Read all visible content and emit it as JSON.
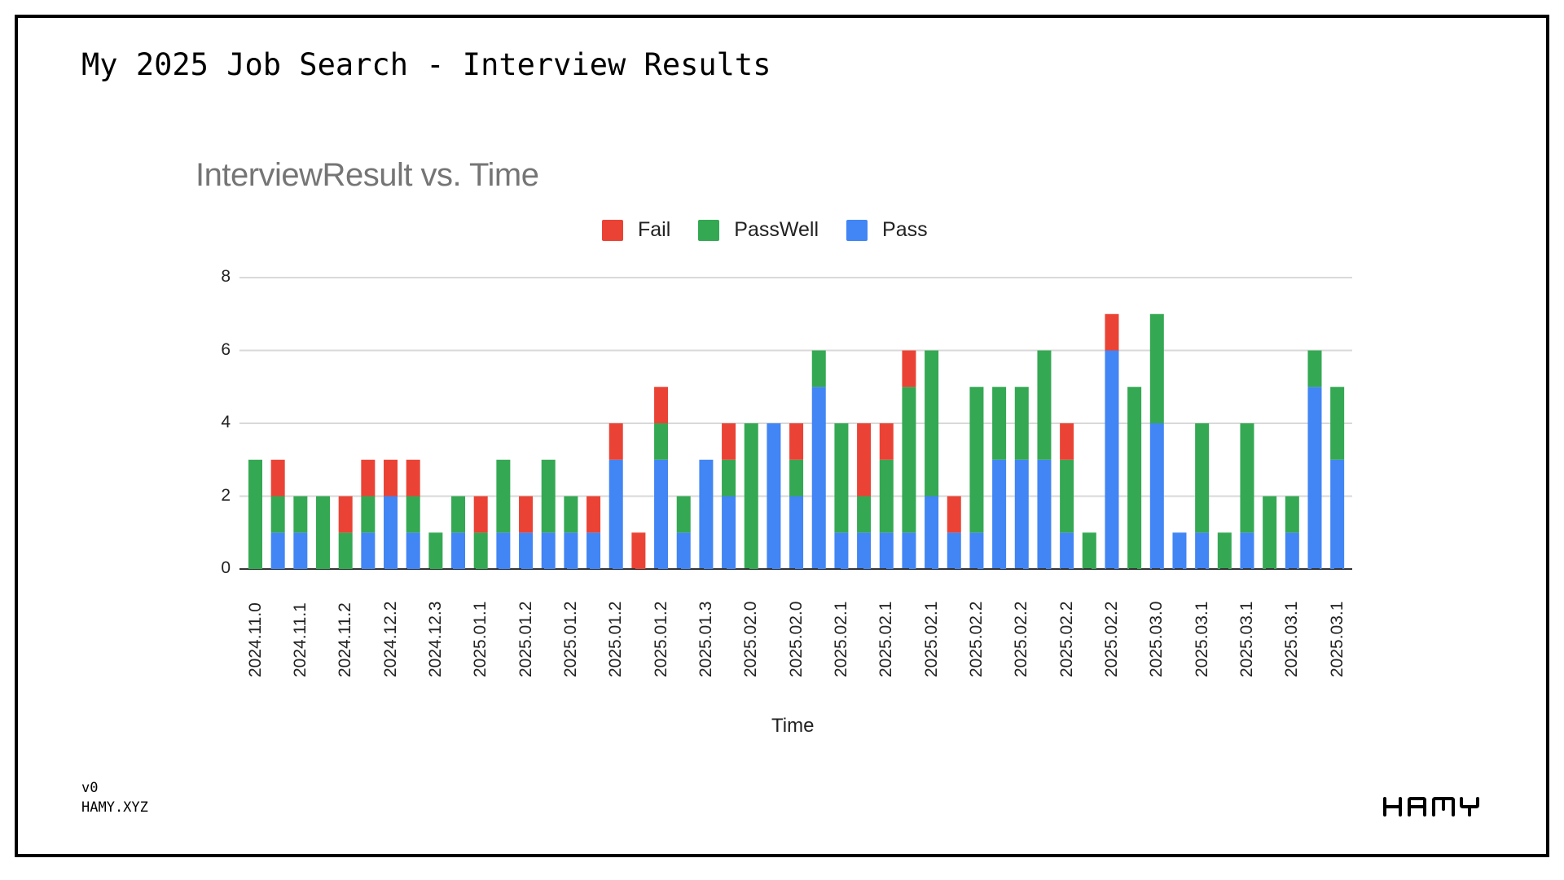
{
  "slide": {
    "title": "My 2025 Job Search - Interview Results",
    "footer_version": "v0",
    "footer_site": "HAMY.XYZ",
    "logo_text": "HAMY"
  },
  "colors": {
    "fail": "#EA4335",
    "passwell": "#34A853",
    "pass": "#4285F4",
    "gridline": "#d9d9d9",
    "title_gray": "#757575"
  },
  "chart_data": {
    "type": "bar",
    "stacked": true,
    "title": "InterviewResult vs. Time",
    "xlabel": "Time",
    "ylabel": "",
    "ylim": [
      0,
      8
    ],
    "yticks": [
      0,
      2,
      4,
      6,
      8
    ],
    "grid": true,
    "legend_position": "top",
    "legend": [
      "Fail",
      "PassWell",
      "Pass"
    ],
    "x_tick_labels": [
      "2024.11.0",
      "2024.11.1",
      "2024.11.2",
      "2024.12.2",
      "2024.12.3",
      "2025.01.1",
      "2025.01.2",
      "2025.01.2",
      "2025.01.2",
      "2025.01.2",
      "2025.01.3",
      "2025.02.0",
      "2025.02.0",
      "2025.02.1",
      "2025.02.1",
      "2025.02.1",
      "2025.02.2",
      "2025.02.2",
      "2025.02.2",
      "2025.02.2",
      "2025.03.0",
      "2025.03.1",
      "2025.03.1",
      "2025.03.1",
      "2025.03.1"
    ],
    "x_tick_every": 2,
    "bar_count": 49,
    "series": [
      {
        "name": "Pass",
        "color": "#4285F4",
        "values": [
          0,
          1,
          1,
          0,
          0,
          1,
          2,
          1,
          0,
          1,
          0,
          1,
          1,
          1,
          1,
          1,
          3,
          0,
          3,
          1,
          3,
          2,
          0,
          4,
          2,
          5,
          1,
          1,
          1,
          1,
          2,
          1,
          1,
          3,
          3,
          3,
          1,
          0,
          6,
          0,
          4,
          1,
          1,
          0,
          1,
          0,
          1,
          5,
          3
        ]
      },
      {
        "name": "PassWell",
        "color": "#34A853",
        "values": [
          3,
          1,
          1,
          2,
          1,
          1,
          0,
          1,
          1,
          1,
          1,
          2,
          0,
          2,
          1,
          0,
          0,
          0,
          1,
          1,
          0,
          1,
          4,
          0,
          1,
          1,
          3,
          1,
          2,
          4,
          4,
          0,
          4,
          2,
          2,
          3,
          2,
          1,
          0,
          5,
          3,
          0,
          3,
          1,
          3,
          2,
          1,
          1,
          2
        ]
      },
      {
        "name": "Fail",
        "color": "#EA4335",
        "values": [
          0,
          1,
          0,
          0,
          1,
          1,
          1,
          1,
          0,
          0,
          1,
          0,
          1,
          0,
          0,
          1,
          1,
          1,
          1,
          0,
          0,
          1,
          0,
          0,
          1,
          0,
          0,
          2,
          1,
          1,
          0,
          1,
          0,
          0,
          0,
          0,
          1,
          0,
          1,
          0,
          0,
          0,
          0,
          0,
          0,
          0,
          0,
          0,
          0
        ]
      }
    ]
  }
}
